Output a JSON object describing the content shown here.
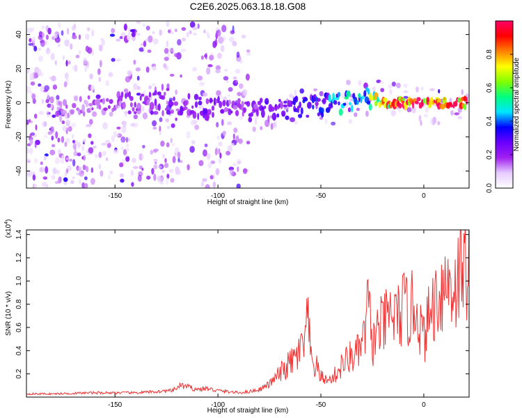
{
  "title": "C2E6.2025.063.18.18.G08",
  "chart_data": [
    {
      "type": "heatmap",
      "xlabel": "Height of straight line (km)",
      "ylabel": "Frequency (Hz)",
      "xlim": [
        -193,
        22
      ],
      "ylim": [
        -50,
        48
      ],
      "x_ticks": [
        -150,
        -100,
        -50,
        0
      ],
      "x_tick_labels": [
        "-150",
        "-100",
        "-50",
        "0"
      ],
      "y_ticks": [
        -40,
        -20,
        0,
        20,
        40
      ],
      "y_tick_labels": [
        "-40",
        "-20",
        "0",
        "20",
        "40"
      ],
      "colorbar": {
        "label": "Normalized spectral amplitude",
        "range": [
          0,
          1
        ],
        "ticks": [
          0.0,
          0.2,
          0.4,
          0.6,
          0.8
        ],
        "tick_labels": [
          "0.0",
          "0.2",
          "0.4",
          "0.6",
          "0.8"
        ],
        "colormap": [
          "#ffffff",
          "#e6ccff",
          "#a020f0",
          "#6a00ff",
          "#0000ff",
          "#00e5ff",
          "#00ff80",
          "#80ff00",
          "#ffff00",
          "#ff8000",
          "#ff0000",
          "#ff0066"
        ]
      },
      "ridge": {
        "x": [
          -190,
          -170,
          -150,
          -130,
          -110,
          -90,
          -75,
          -60,
          -50,
          -40,
          -30,
          -25,
          -20,
          -10,
          0,
          10,
          20
        ],
        "frequency": [
          -3,
          -2,
          -1,
          0,
          -2,
          -4,
          -4,
          -3,
          -2,
          0,
          2,
          3,
          0,
          0,
          0,
          0,
          0
        ],
        "amplitude": [
          0.12,
          0.15,
          0.18,
          0.22,
          0.25,
          0.2,
          0.25,
          0.3,
          0.35,
          0.45,
          0.55,
          0.65,
          0.8,
          0.9,
          0.95,
          0.95,
          0.9
        ]
      }
    },
    {
      "type": "line",
      "xlabel": "Height of straight line (km)",
      "ylabel": "SNR (10 * v/v)",
      "y_multiplier_label": "(x10",
      "y_multiplier_exp": "4",
      "y_multiplier_close": ")",
      "xlim": [
        -193,
        22
      ],
      "ylim": [
        0,
        1.44
      ],
      "x_ticks": [
        -150,
        -100,
        -50,
        0
      ],
      "x_tick_labels": [
        "-150",
        "-100",
        "-50",
        "0"
      ],
      "y_ticks": [
        0.2,
        0.4,
        0.6,
        0.8,
        1.0,
        1.2,
        1.4
      ],
      "y_tick_labels": [
        "0.2",
        "0.4",
        "0.6",
        "0.8",
        "1.0",
        "1.2",
        "1.4"
      ],
      "line_color": "#ee3333",
      "series": [
        {
          "x": [
            -193,
            -180,
            -160,
            -140,
            -130,
            -122,
            -118,
            -114,
            -110,
            -106,
            -100,
            -95,
            -90,
            -85,
            -80,
            -75,
            -70,
            -66,
            -62,
            -58,
            -56,
            -55,
            -54,
            -52,
            -50,
            -47,
            -44,
            -40,
            -36,
            -32,
            -29,
            -27,
            -25,
            -22,
            -19,
            -16,
            -13,
            -10,
            -7,
            -4,
            -1,
            0,
            3,
            6,
            9,
            12,
            15,
            18,
            22
          ],
          "y": [
            0.03,
            0.03,
            0.04,
            0.04,
            0.05,
            0.06,
            0.11,
            0.09,
            0.07,
            0.08,
            0.06,
            0.05,
            0.04,
            0.05,
            0.07,
            0.12,
            0.22,
            0.3,
            0.38,
            0.5,
            0.78,
            0.35,
            0.32,
            0.28,
            0.2,
            0.15,
            0.18,
            0.3,
            0.38,
            0.42,
            0.55,
            0.9,
            0.5,
            0.65,
            0.7,
            0.8,
            0.75,
            0.85,
            0.8,
            0.9,
            0.62,
            0.55,
            0.8,
            0.95,
            1.05,
            1.1,
            1.05,
            1.2,
            1.28
          ]
        }
      ]
    }
  ]
}
